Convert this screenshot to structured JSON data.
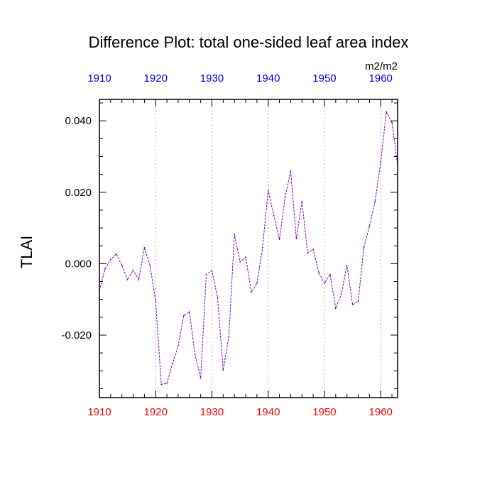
{
  "chart_data": {
    "type": "line",
    "title": "Difference Plot: total one-sided leaf area index",
    "units_label": "m2/m2",
    "ylabel": "TLAI",
    "xlim": [
      1910,
      1963
    ],
    "ylim": [
      -0.0375,
      0.046
    ],
    "x_ticks": [
      1910,
      1920,
      1930,
      1940,
      1950,
      1960
    ],
    "x_tick_labels": [
      "1910",
      "1920",
      "1930",
      "1940",
      "1950",
      "1960"
    ],
    "y_ticks": [
      -0.02,
      0.0,
      0.02,
      0.04
    ],
    "y_tick_labels": [
      "-0.020",
      "0.000",
      "0.020",
      "0.040"
    ],
    "grid": "vertical dashed at major x ticks",
    "bottom_axis_color": "#ff0000",
    "top_axis_color": "#0000ff",
    "line_color": "#7a00cc",
    "line_style": "dashed",
    "series": [
      {
        "x": [
          1910,
          1911,
          1912,
          1913,
          1914,
          1915,
          1916,
          1917,
          1918,
          1919,
          1920,
          1921,
          1922,
          1923,
          1924,
          1925,
          1926,
          1927,
          1928,
          1929,
          1930,
          1931,
          1932,
          1933,
          1934,
          1935,
          1936,
          1937,
          1938,
          1939,
          1940,
          1941,
          1942,
          1943,
          1944,
          1945,
          1946,
          1947,
          1948,
          1949,
          1950,
          1951,
          1952,
          1953,
          1954,
          1955,
          1956,
          1957,
          1958,
          1959,
          1960,
          1961,
          1962,
          1963
        ],
        "values": [
          -0.0075,
          -0.0015,
          0.0012,
          0.0027,
          -0.0005,
          -0.0045,
          -0.0018,
          -0.0045,
          0.0045,
          -0.0005,
          -0.0105,
          -0.0338,
          -0.0335,
          -0.028,
          -0.023,
          -0.0145,
          -0.0135,
          -0.0255,
          -0.032,
          -0.003,
          -0.002,
          -0.0095,
          -0.0298,
          -0.0205,
          0.0082,
          0.0005,
          0.0018,
          -0.008,
          -0.0055,
          0.0045,
          0.0205,
          0.0135,
          0.0068,
          0.0185,
          0.026,
          0.007,
          0.0175,
          0.003,
          0.004,
          -0.0025,
          -0.0055,
          -0.003,
          -0.0125,
          -0.0085,
          -0.0005,
          -0.0115,
          -0.0105,
          0.0045,
          0.0105,
          0.0175,
          0.0285,
          0.0425,
          0.0395,
          0.0275
        ]
      }
    ]
  }
}
